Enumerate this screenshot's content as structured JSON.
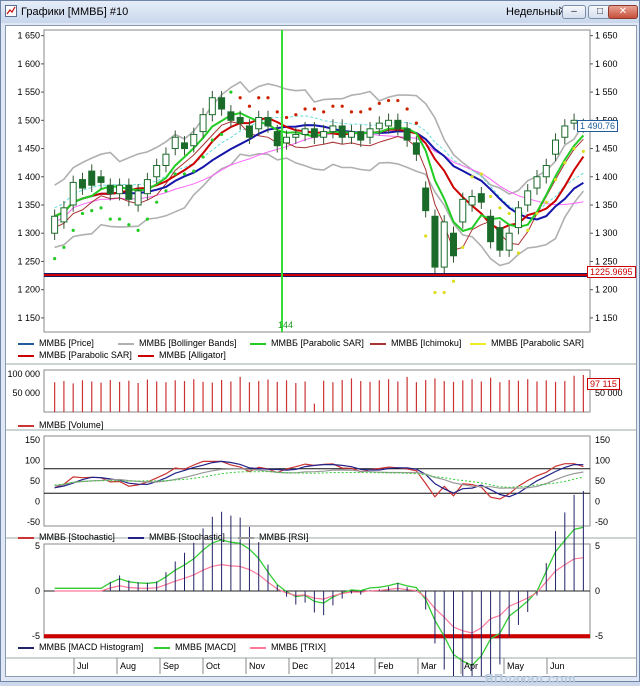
{
  "window": {
    "title": "Графики [ММВБ] #10",
    "period": "Недельный",
    "btn_min": "–",
    "btn_max": "□",
    "btn_close": "✕"
  },
  "colors": {
    "price": "#1f5c99",
    "bb": "#b0b0b0",
    "sar": "#22aa22",
    "ichimoku": "#aa3333",
    "alligator": "#cc0000",
    "support": "#cc0000"
  },
  "price_panel": {
    "yticks": [
      "1 650",
      "1 600",
      "1 550",
      "1 500",
      "1 450",
      "1 400",
      "1 350",
      "1 300",
      "1 250",
      "1 200",
      "1 150"
    ],
    "last_price": "1 490.76",
    "level_value": "1225.9695",
    "cursor_label": "144",
    "legend": [
      {
        "name": "ММВБ [Price]",
        "color": "#1f5c99"
      },
      {
        "name": "ММВБ [Bollinger Bands]",
        "color": "#b0b0b0"
      },
      {
        "name": "ММВБ [Parabolic SAR]",
        "color": "#22cc22"
      },
      {
        "name": "ММВБ [Ichimoku]",
        "color": "#aa3333"
      },
      {
        "name": "ММВБ [Parabolic SAR]",
        "color": "#eeee22"
      },
      {
        "name": "ММВБ [Parabolic SAR]",
        "color": "#cc0000"
      },
      {
        "name": "ММВБ [Alligator]",
        "color": "#cc0000"
      }
    ]
  },
  "volume_panel": {
    "yticks": [
      "100 000",
      "50 000"
    ],
    "yticks_right": [
      "50 000"
    ],
    "last": "97 115",
    "legend": "ММВБ [Volume]"
  },
  "osc_panel": {
    "yticks": [
      "150",
      "100",
      "50",
      "0",
      "-50"
    ],
    "legend": [
      "ММВБ [Stochastic]",
      "ММВБ [Stochastic]",
      "ММВБ [RSI]"
    ]
  },
  "macd_panel": {
    "yticks": [
      "5",
      "0",
      "-5"
    ],
    "legend": [
      "ММВБ [MACD Histogram]",
      "ММВБ [MACD]",
      "ММВБ [TRIX]"
    ]
  },
  "months": [
    "Jul",
    "Aug",
    "Sep",
    "Oct",
    "Nov",
    "Dec",
    "2014",
    "Feb",
    "Mar",
    "Apr",
    "May",
    "Jun"
  ],
  "watermark": "ЯПлакал.com",
  "chart_data": {
    "type": "candlestick",
    "ylim": [
      1125,
      1660
    ],
    "candles": [
      {
        "o": 1300,
        "c": 1330
      },
      {
        "o": 1320,
        "c": 1345
      },
      {
        "o": 1350,
        "c": 1390
      },
      {
        "o": 1395,
        "c": 1380
      },
      {
        "o": 1410,
        "c": 1385
      },
      {
        "o": 1400,
        "c": 1390
      },
      {
        "o": 1385,
        "c": 1370
      },
      {
        "o": 1370,
        "c": 1385
      },
      {
        "o": 1385,
        "c": 1360
      },
      {
        "o": 1350,
        "c": 1375
      },
      {
        "o": 1370,
        "c": 1395
      },
      {
        "o": 1400,
        "c": 1420
      },
      {
        "o": 1420,
        "c": 1440
      },
      {
        "o": 1450,
        "c": 1470
      },
      {
        "o": 1460,
        "c": 1450
      },
      {
        "o": 1455,
        "c": 1475
      },
      {
        "o": 1480,
        "c": 1510
      },
      {
        "o": 1510,
        "c": 1540
      },
      {
        "o": 1540,
        "c": 1520
      },
      {
        "o": 1515,
        "c": 1500
      },
      {
        "o": 1505,
        "c": 1495
      },
      {
        "o": 1490,
        "c": 1470
      },
      {
        "o": 1485,
        "c": 1505
      },
      {
        "o": 1505,
        "c": 1490
      },
      {
        "o": 1480,
        "c": 1455
      },
      {
        "o": 1460,
        "c": 1470
      },
      {
        "o": 1470,
        "c": 1475
      },
      {
        "o": 1475,
        "c": 1485
      },
      {
        "o": 1485,
        "c": 1470
      },
      {
        "o": 1470,
        "c": 1480
      },
      {
        "o": 1480,
        "c": 1490
      },
      {
        "o": 1490,
        "c": 1470
      },
      {
        "o": 1470,
        "c": 1480
      },
      {
        "o": 1480,
        "c": 1465
      },
      {
        "o": 1470,
        "c": 1485
      },
      {
        "o": 1485,
        "c": 1495
      },
      {
        "o": 1490,
        "c": 1500
      },
      {
        "o": 1500,
        "c": 1485
      },
      {
        "o": 1485,
        "c": 1465
      },
      {
        "o": 1460,
        "c": 1440
      },
      {
        "o": 1380,
        "c": 1340
      },
      {
        "o": 1330,
        "c": 1240
      },
      {
        "o": 1240,
        "c": 1320
      },
      {
        "o": 1300,
        "c": 1260
      },
      {
        "o": 1320,
        "c": 1360
      },
      {
        "o": 1350,
        "c": 1365
      },
      {
        "o": 1370,
        "c": 1355
      },
      {
        "o": 1330,
        "c": 1285
      },
      {
        "o": 1310,
        "c": 1270
      },
      {
        "o": 1270,
        "c": 1300
      },
      {
        "o": 1310,
        "c": 1345
      },
      {
        "o": 1350,
        "c": 1375
      },
      {
        "o": 1380,
        "c": 1400
      },
      {
        "o": 1400,
        "c": 1420
      },
      {
        "o": 1440,
        "c": 1465
      },
      {
        "o": 1470,
        "c": 1490
      },
      {
        "o": 1495,
        "c": 1500
      },
      {
        "o": 1490,
        "c": 1491
      }
    ],
    "support_level": 1225.9695,
    "volume": [
      78,
      81,
      75,
      83,
      80,
      77,
      84,
      79,
      82,
      76,
      85,
      80,
      78,
      83,
      81,
      86,
      79,
      77,
      84,
      80,
      92,
      78,
      81,
      85,
      79,
      83,
      76,
      80,
      22,
      82,
      78,
      84,
      88,
      81,
      79,
      83,
      86,
      80,
      92,
      78,
      84,
      88,
      81,
      79,
      83,
      86,
      80,
      90,
      78,
      84,
      82,
      86,
      80,
      83,
      79,
      81,
      95,
      97
    ]
  }
}
